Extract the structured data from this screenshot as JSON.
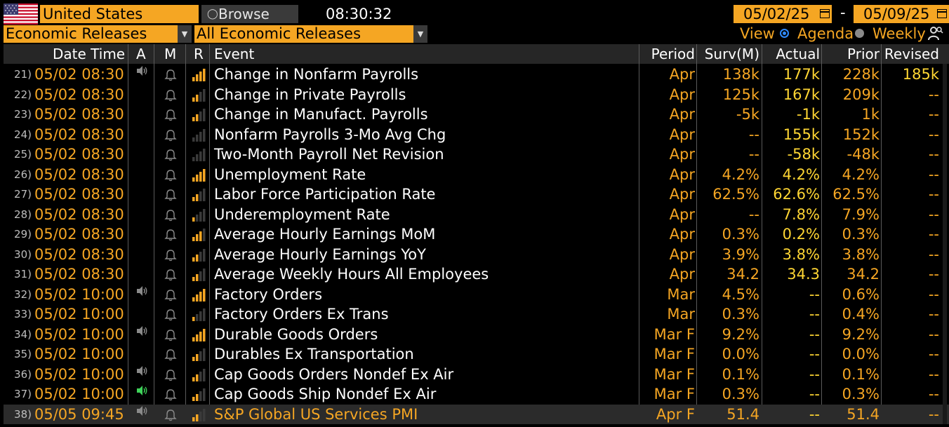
{
  "toolbar": {
    "country": "United States",
    "browse_label": "Browse",
    "clock": "08:30:32",
    "start_date": "05/02/25",
    "date_separator": "-",
    "end_date": "05/09/25",
    "category_select": "Economic Releases",
    "release_select": "All Economic Releases",
    "view_label": "View",
    "view_options": [
      "Agenda",
      "Weekly"
    ],
    "view_selected": "Agenda"
  },
  "columns": {
    "datetime": "Date Time",
    "a": "A",
    "m": "M",
    "r": "R",
    "event": "Event",
    "period": "Period",
    "survey": "Surv(M)",
    "actual": "Actual",
    "prior": "Prior",
    "revised": "Revised"
  },
  "colors": {
    "accent": "#f5a623",
    "actual_yellow": "#ffd633",
    "background": "#000000",
    "header_bg": "#262626",
    "alert_green": "#3fd35a"
  },
  "rows": [
    {
      "num": "21)",
      "datetime": "05/02 08:30",
      "alarm": "speaker-icon",
      "relevance": 4,
      "event": "Change in Nonfarm Payrolls",
      "period": "Apr",
      "survey": "138k",
      "actual": "177k",
      "prior": "228k",
      "revised": "185k"
    },
    {
      "num": "22)",
      "datetime": "05/02 08:30",
      "alarm": "",
      "relevance": 2,
      "event": "Change in Private Payrolls",
      "period": "Apr",
      "survey": "125k",
      "actual": "167k",
      "prior": "209k",
      "revised": "--"
    },
    {
      "num": "23)",
      "datetime": "05/02 08:30",
      "alarm": "",
      "relevance": 2,
      "event": "Change in Manufact. Payrolls",
      "period": "Apr",
      "survey": "-5k",
      "actual": "-1k",
      "prior": "1k",
      "revised": "--"
    },
    {
      "num": "24)",
      "datetime": "05/02 08:30",
      "alarm": "",
      "relevance": 0,
      "event": "Nonfarm Payrolls 3-Mo Avg Chg",
      "period": "Apr",
      "survey": "--",
      "actual": "155k",
      "prior": "152k",
      "revised": "--"
    },
    {
      "num": "25)",
      "datetime": "05/02 08:30",
      "alarm": "",
      "relevance": 0,
      "event": "Two-Month Payroll Net Revision",
      "period": "Apr",
      "survey": "--",
      "actual": "-58k",
      "prior": "-48k",
      "revised": "--"
    },
    {
      "num": "26)",
      "datetime": "05/02 08:30",
      "alarm": "",
      "relevance": 4,
      "event": "Unemployment Rate",
      "period": "Apr",
      "survey": "4.2%",
      "actual": "4.2%",
      "prior": "4.2%",
      "revised": "--"
    },
    {
      "num": "27)",
      "datetime": "05/02 08:30",
      "alarm": "",
      "relevance": 2,
      "event": "Labor Force Participation Rate",
      "period": "Apr",
      "survey": "62.5%",
      "actual": "62.6%",
      "prior": "62.5%",
      "revised": "--"
    },
    {
      "num": "28)",
      "datetime": "05/02 08:30",
      "alarm": "",
      "relevance": 1,
      "event": "Underemployment Rate",
      "period": "Apr",
      "survey": "--",
      "actual": "7.8%",
      "prior": "7.9%",
      "revised": "--"
    },
    {
      "num": "29)",
      "datetime": "05/02 08:30",
      "alarm": "",
      "relevance": 3,
      "event": "Average Hourly Earnings MoM",
      "period": "Apr",
      "survey": "0.3%",
      "actual": "0.2%",
      "prior": "0.3%",
      "revised": "--"
    },
    {
      "num": "30)",
      "datetime": "05/02 08:30",
      "alarm": "",
      "relevance": 2,
      "event": "Average Hourly Earnings YoY",
      "period": "Apr",
      "survey": "3.9%",
      "actual": "3.8%",
      "prior": "3.8%",
      "revised": "--"
    },
    {
      "num": "31)",
      "datetime": "05/02 08:30",
      "alarm": "",
      "relevance": 2,
      "event": "Average Weekly Hours All Employees",
      "period": "Apr",
      "survey": "34.2",
      "actual": "34.3",
      "prior": "34.2",
      "revised": "--"
    },
    {
      "num": "32)",
      "datetime": "05/02 10:00",
      "alarm": "speaker-icon",
      "relevance": 4,
      "event": "Factory Orders",
      "period": "Mar",
      "survey": "4.5%",
      "actual": "--",
      "prior": "0.6%",
      "revised": "--"
    },
    {
      "num": "33)",
      "datetime": "05/02 10:00",
      "alarm": "",
      "relevance": 1,
      "event": "Factory Orders Ex Trans",
      "period": "Mar",
      "survey": "0.3%",
      "actual": "--",
      "prior": "0.4%",
      "revised": "--"
    },
    {
      "num": "34)",
      "datetime": "05/02 10:00",
      "alarm": "speaker-icon",
      "relevance": 4,
      "event": "Durable Goods Orders",
      "period": "Mar F",
      "survey": "9.2%",
      "actual": "--",
      "prior": "9.2%",
      "revised": "--"
    },
    {
      "num": "35)",
      "datetime": "05/02 10:00",
      "alarm": "",
      "relevance": 2,
      "event": "Durables Ex Transportation",
      "period": "Mar F",
      "survey": "0.0%",
      "actual": "--",
      "prior": "0.0%",
      "revised": "--"
    },
    {
      "num": "36)",
      "datetime": "05/02 10:00",
      "alarm": "speaker-icon",
      "relevance": 2,
      "event": "Cap Goods Orders Nondef Ex Air",
      "period": "Mar F",
      "survey": "0.1%",
      "actual": "--",
      "prior": "0.1%",
      "revised": "--"
    },
    {
      "num": "37)",
      "datetime": "05/02 10:00",
      "alarm": "speaker-green-icon",
      "relevance": 2,
      "event": "Cap Goods Ship Nondef Ex Air",
      "period": "Mar F",
      "survey": "0.3%",
      "actual": "--",
      "prior": "0.3%",
      "revised": "--"
    },
    {
      "num": "38)",
      "datetime": "05/05 09:45",
      "alarm": "speaker-icon",
      "relevance": 2,
      "event": "S&P Global US Services PMI",
      "period": "Apr F",
      "survey": "51.4",
      "actual": "--",
      "prior": "51.4",
      "revised": "--"
    }
  ]
}
